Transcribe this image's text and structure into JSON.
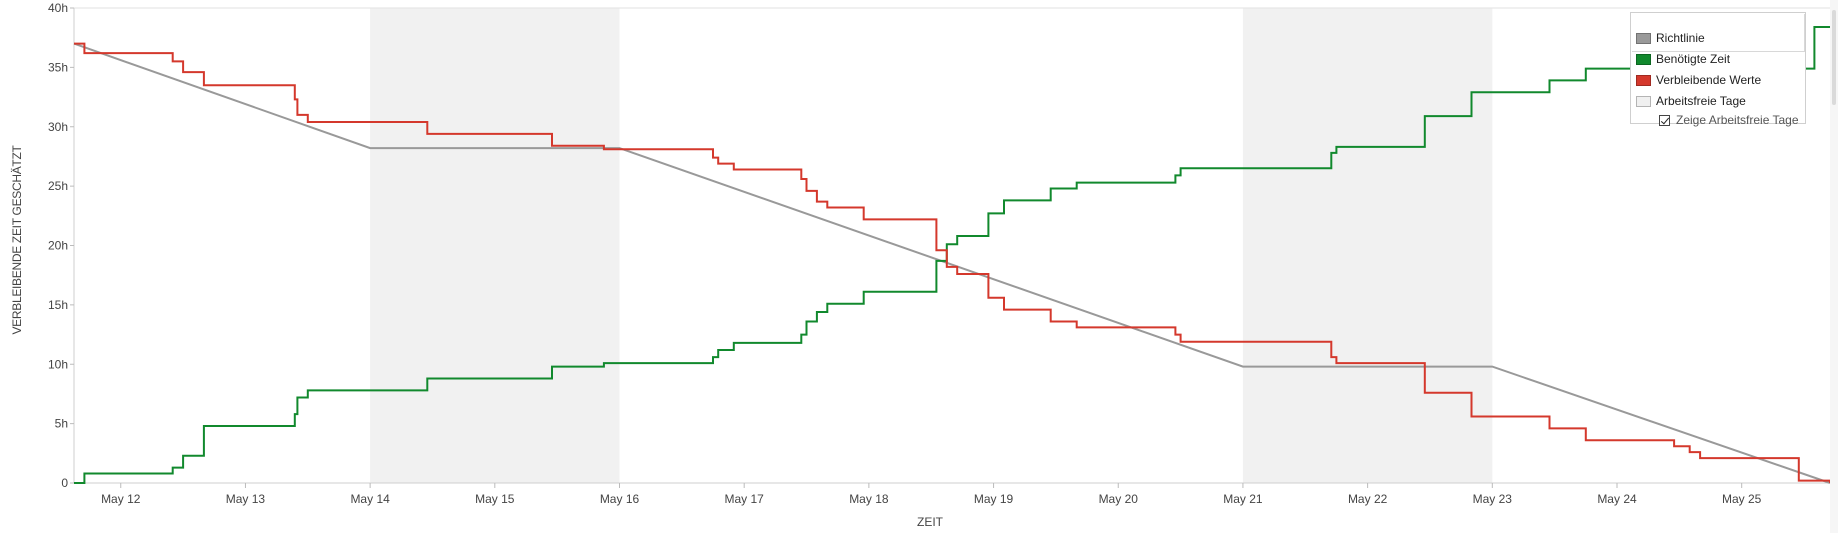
{
  "chart_data": {
    "type": "line",
    "xlabel": "ZEIT",
    "ylabel": "VERBLEIBENDE ZEIT GESCHÄTZT",
    "x_range": [
      "2015-05-11T15:00",
      "2015-05-25T17:00"
    ],
    "x_ticks": [
      "May 12",
      "May 13",
      "May 14",
      "May 15",
      "May 16",
      "May 17",
      "May 18",
      "May 19",
      "May 20",
      "May 21",
      "May 22",
      "May 23",
      "May 24",
      "May 25"
    ],
    "ylim": [
      0,
      40
    ],
    "y_ticks": [
      "0",
      "5h",
      "10h",
      "15h",
      "20h",
      "25h",
      "30h",
      "35h",
      "40h"
    ],
    "y_tick_values": [
      0,
      5,
      10,
      15,
      20,
      25,
      30,
      35,
      40
    ],
    "non_working_days": [
      {
        "start": "2015-05-14T00:00",
        "end": "2015-05-16T00:00"
      },
      {
        "start": "2015-05-21T00:00",
        "end": "2015-05-23T00:00"
      }
    ],
    "legend_position": "top-right",
    "series": [
      {
        "name": "Richtlinie",
        "color": "#999999",
        "step": false,
        "points": [
          [
            "2015-05-11T15:00",
            37.0
          ],
          [
            "2015-05-14T00:00",
            28.2
          ],
          [
            "2015-05-16T00:00",
            28.2
          ],
          [
            "2015-05-21T00:00",
            9.8
          ],
          [
            "2015-05-23T00:00",
            9.8
          ],
          [
            "2015-05-25T17:00",
            0.0
          ]
        ]
      },
      {
        "name": "Benötigte Zeit",
        "color": "#11892d",
        "step": true,
        "points": [
          [
            "2015-05-11T15:00",
            0.0
          ],
          [
            "2015-05-11T17:00",
            0.8
          ],
          [
            "2015-05-12T10:00",
            1.3
          ],
          [
            "2015-05-12T12:00",
            2.3
          ],
          [
            "2015-05-12T16:00",
            4.8
          ],
          [
            "2015-05-13T09:30",
            5.8
          ],
          [
            "2015-05-13T10:00",
            7.2
          ],
          [
            "2015-05-13T12:00",
            7.8
          ],
          [
            "2015-05-14T11:00",
            8.8
          ],
          [
            "2015-05-15T11:00",
            9.8
          ],
          [
            "2015-05-15T21:00",
            10.1
          ],
          [
            "2015-05-16T18:00",
            10.6
          ],
          [
            "2015-05-16T19:00",
            11.2
          ],
          [
            "2015-05-16T22:00",
            11.8
          ],
          [
            "2015-05-17T11:00",
            12.5
          ],
          [
            "2015-05-17T12:00",
            13.6
          ],
          [
            "2015-05-17T14:00",
            14.4
          ],
          [
            "2015-05-17T16:00",
            15.1
          ],
          [
            "2015-05-17T23:00",
            16.1
          ],
          [
            "2015-05-18T13:00",
            18.7
          ],
          [
            "2015-05-18T15:00",
            20.1
          ],
          [
            "2015-05-18T17:00",
            20.8
          ],
          [
            "2015-05-18T23:00",
            22.7
          ],
          [
            "2015-05-19T02:00",
            23.8
          ],
          [
            "2015-05-19T11:00",
            24.8
          ],
          [
            "2015-05-19T16:00",
            25.3
          ],
          [
            "2015-05-20T11:00",
            25.9
          ],
          [
            "2015-05-20T12:00",
            26.5
          ],
          [
            "2015-05-21T17:00",
            27.8
          ],
          [
            "2015-05-21T18:00",
            28.3
          ],
          [
            "2015-05-22T11:00",
            30.9
          ],
          [
            "2015-05-22T20:00",
            32.9
          ],
          [
            "2015-05-23T11:00",
            33.9
          ],
          [
            "2015-05-23T18:00",
            34.9
          ],
          [
            "2015-05-25T14:00",
            38.4
          ],
          [
            "2015-05-25T17:00",
            38.4
          ]
        ]
      },
      {
        "name": "Verbleibende Werte",
        "color": "#d4382c",
        "step": true,
        "points": [
          [
            "2015-05-11T15:00",
            37.0
          ],
          [
            "2015-05-11T17:00",
            36.2
          ],
          [
            "2015-05-12T10:00",
            35.5
          ],
          [
            "2015-05-12T12:00",
            34.6
          ],
          [
            "2015-05-12T16:00",
            33.5
          ],
          [
            "2015-05-13T09:30",
            32.3
          ],
          [
            "2015-05-13T10:00",
            31.0
          ],
          [
            "2015-05-13T12:00",
            30.4
          ],
          [
            "2015-05-14T11:00",
            29.4
          ],
          [
            "2015-05-15T11:00",
            28.4
          ],
          [
            "2015-05-15T21:00",
            28.1
          ],
          [
            "2015-05-16T18:00",
            27.4
          ],
          [
            "2015-05-16T19:00",
            26.9
          ],
          [
            "2015-05-16T22:00",
            26.4
          ],
          [
            "2015-05-17T11:00",
            25.6
          ],
          [
            "2015-05-17T12:00",
            24.6
          ],
          [
            "2015-05-17T14:00",
            23.7
          ],
          [
            "2015-05-17T16:00",
            23.2
          ],
          [
            "2015-05-17T23:00",
            22.2
          ],
          [
            "2015-05-18T13:00",
            19.6
          ],
          [
            "2015-05-18T15:00",
            18.2
          ],
          [
            "2015-05-18T17:00",
            17.6
          ],
          [
            "2015-05-18T23:00",
            15.6
          ],
          [
            "2015-05-19T02:00",
            14.6
          ],
          [
            "2015-05-19T11:00",
            13.6
          ],
          [
            "2015-05-19T16:00",
            13.1
          ],
          [
            "2015-05-20T11:00",
            12.5
          ],
          [
            "2015-05-20T12:00",
            11.9
          ],
          [
            "2015-05-21T17:00",
            10.6
          ],
          [
            "2015-05-21T18:00",
            10.1
          ],
          [
            "2015-05-22T11:00",
            7.6
          ],
          [
            "2015-05-22T20:00",
            5.6
          ],
          [
            "2015-05-23T11:00",
            4.6
          ],
          [
            "2015-05-23T18:00",
            3.6
          ],
          [
            "2015-05-24T11:00",
            3.1
          ],
          [
            "2015-05-24T14:00",
            2.6
          ],
          [
            "2015-05-24T16:00",
            2.1
          ],
          [
            "2015-05-25T11:00",
            0.2
          ],
          [
            "2015-05-25T17:00",
            0.0
          ]
        ]
      }
    ]
  },
  "legend": {
    "items": [
      {
        "label": "Richtlinie",
        "color": "#999999"
      },
      {
        "label": "Benötigte Zeit",
        "color": "#11892d"
      },
      {
        "label": "Verbleibende Werte",
        "color": "#d4382c"
      },
      {
        "label": "Arbeitsfreie Tage",
        "color": "#f0f0f0"
      }
    ],
    "checkbox_label": "Zeige Arbeitsfreie Tage",
    "checkbox_checked": true
  }
}
